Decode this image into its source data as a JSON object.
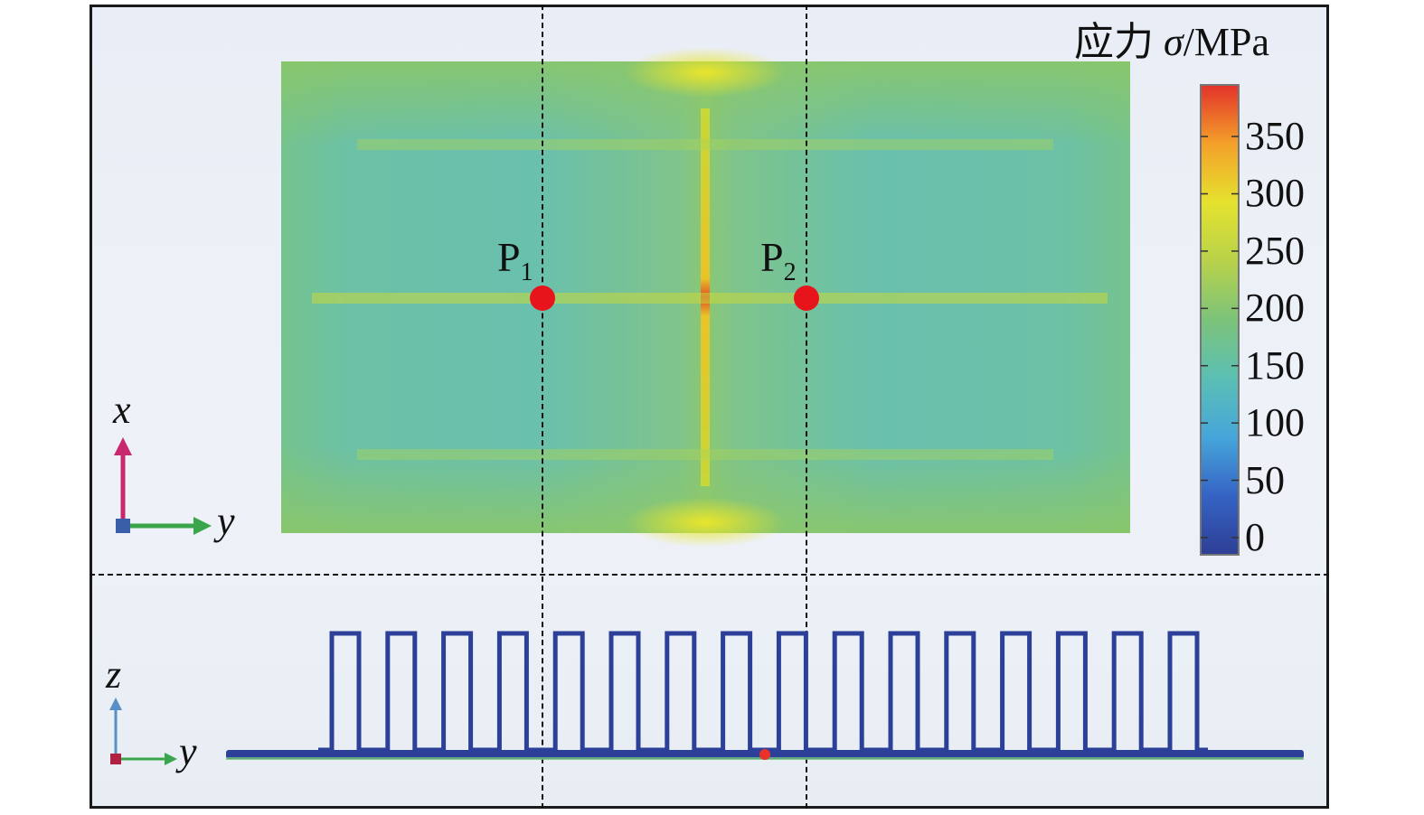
{
  "colorbar": {
    "title_prefix": "应力 ",
    "title_symbol": "σ",
    "title_unit": "/MPa",
    "ticks": [
      "350",
      "300",
      "250",
      "200",
      "150",
      "100",
      "50",
      "0"
    ],
    "tick_values": [
      350,
      300,
      250,
      200,
      150,
      100,
      50,
      0
    ],
    "range": [
      -15,
      395
    ],
    "colors": [
      "#2e3f95",
      "#3563c4",
      "#46a6da",
      "#5bbfb4",
      "#7cc37a",
      "#b8d24a",
      "#e5e22e",
      "#f4a02a",
      "#e2322a"
    ]
  },
  "points": [
    {
      "label": "P",
      "sub": "1"
    },
    {
      "label": "P",
      "sub": "2"
    }
  ],
  "top_axes": {
    "vertical": "x",
    "horizontal": "y",
    "vertical_color": "#c8286e",
    "horizontal_color": "#3aa54a"
  },
  "bottom_axes": {
    "vertical": "z",
    "horizontal": "y",
    "vertical_color": "#5a8ec6",
    "horizontal_color": "#3aa54a"
  },
  "fin_count": 16
}
